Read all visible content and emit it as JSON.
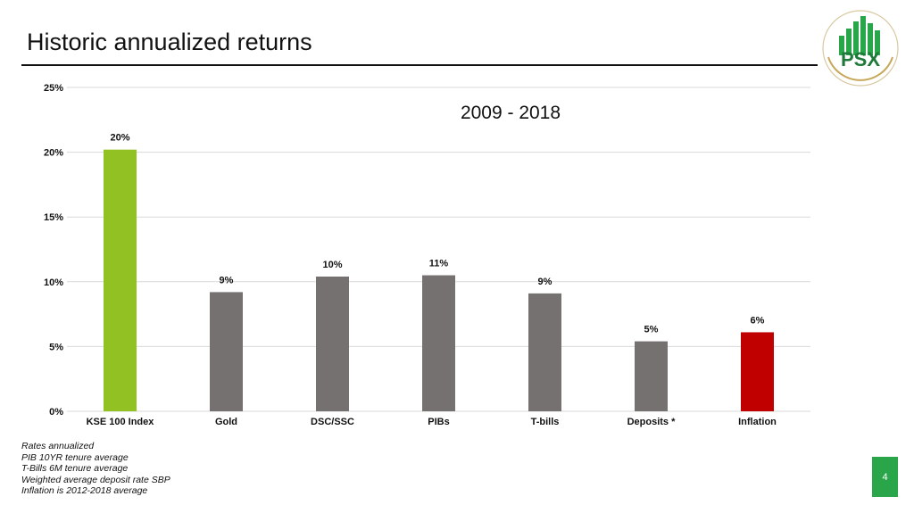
{
  "slide": {
    "title": "Historic annualized returns",
    "page_number": "4",
    "logo_text": "PSX"
  },
  "notes": [
    "Rates annualized",
    "PIB 10YR tenure average",
    "T-Bills 6M tenure average",
    "Weighted average deposit rate SBP",
    "Inflation is 2012-2018 average"
  ],
  "colors": {
    "brand_green": "#2aa64a",
    "kse_green": "#92c123",
    "bar_gray": "#767171",
    "inflation_red": "#c00000"
  },
  "chart_data": {
    "type": "bar",
    "title": "2009 - 2018",
    "xlabel": "",
    "ylabel": "",
    "categories": [
      "KSE 100 Index",
      "Gold",
      "DSC/SSC",
      "PIBs",
      "T-bills",
      "Deposits *",
      "Inflation"
    ],
    "values": [
      20.2,
      9.2,
      10.4,
      10.5,
      9.1,
      5.4,
      6.1
    ],
    "data_labels": [
      "20%",
      "9%",
      "10%",
      "11%",
      "9%",
      "5%",
      "6%"
    ],
    "bar_colors": [
      "#92c123",
      "#767171",
      "#767171",
      "#767171",
      "#767171",
      "#767171",
      "#c00000"
    ],
    "ylim": [
      0,
      25
    ],
    "yticks": [
      0,
      5,
      10,
      15,
      20,
      25
    ],
    "ytick_labels": [
      "0%",
      "5%",
      "10%",
      "15%",
      "20%",
      "25%"
    ],
    "grid": true,
    "legend": "none"
  }
}
